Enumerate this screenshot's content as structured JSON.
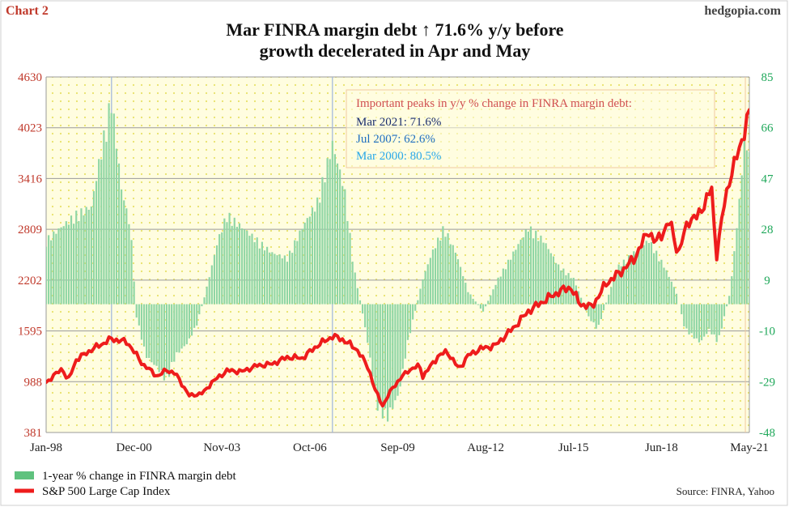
{
  "chart_label": "Chart 2",
  "brand": "hedgopia.com",
  "title_line1": "Mar FINRA margin debt ↑ 71.6% y/y before",
  "title_line2": "growth decelerated in Apr and May",
  "source": "Source: FINRA, Yahoo",
  "colors": {
    "left_axis": "#c0392b",
    "right_axis": "#1fa85a",
    "line": "#ee1c1c",
    "bars": "#8fd6a5",
    "plot_bg": "#fffde0",
    "dot": "#e8e26a",
    "annotation_title": "#d05050",
    "ann_2021": "#1a2e6e",
    "ann_2007": "#1f6fc0",
    "ann_2000": "#28a8e8"
  },
  "annotation": {
    "title": "Important peaks in y/y % change in FINRA margin debt:",
    "items": [
      "Mar 2021: 71.6%",
      "Jul 2007: 62.6%",
      "Mar 2000: 80.5%"
    ]
  },
  "chart_data": {
    "type": "bar+line",
    "title": "Mar FINRA margin debt ↑ 71.6% y/y before growth decelerated in Apr and May",
    "x_tick_labels": [
      "Jan-98",
      "Dec-00",
      "Nov-03",
      "Oct-06",
      "Sep-09",
      "Aug-12",
      "Jul-15",
      "Jun-18",
      "May-21"
    ],
    "x_start": "Jan-98",
    "x_end": "May-21",
    "left_axis": {
      "ticks": [
        381,
        988,
        1595,
        2202,
        2809,
        3416,
        4023,
        4630
      ],
      "range": [
        381,
        4630
      ]
    },
    "right_axis": {
      "ticks": [
        -48,
        -29,
        -10,
        9,
        28,
        47,
        66,
        85
      ],
      "range": [
        -48,
        85
      ]
    },
    "vertical_markers": [
      "Mar 2000",
      "Jul 2007"
    ],
    "legend": [
      "1-year % change in FINRA margin debt",
      "S&P 500 Large Cap Index"
    ],
    "series": [
      {
        "name": "1-year % change in FINRA margin debt",
        "type": "bar",
        "axis": "right",
        "points": [
          [
            1998.0,
            25
          ],
          [
            1998.5,
            30
          ],
          [
            1999.0,
            35
          ],
          [
            1999.5,
            38
          ],
          [
            1999.75,
            55
          ],
          [
            2000.17,
            80.5
          ],
          [
            2000.5,
            45
          ],
          [
            2000.8,
            30
          ],
          [
            2001.0,
            -5
          ],
          [
            2001.3,
            -20
          ],
          [
            2001.7,
            -25
          ],
          [
            2002.0,
            -30
          ],
          [
            2002.3,
            -20
          ],
          [
            2002.7,
            -15
          ],
          [
            2003.0,
            -8
          ],
          [
            2003.3,
            5
          ],
          [
            2003.7,
            25
          ],
          [
            2004.0,
            35
          ],
          [
            2004.5,
            30
          ],
          [
            2005.0,
            25
          ],
          [
            2005.5,
            20
          ],
          [
            2006.0,
            18
          ],
          [
            2006.5,
            30
          ],
          [
            2007.0,
            40
          ],
          [
            2007.5,
            62.6
          ],
          [
            2007.9,
            45
          ],
          [
            2008.2,
            15
          ],
          [
            2008.6,
            -10
          ],
          [
            2009.0,
            -40
          ],
          [
            2009.3,
            -45
          ],
          [
            2009.7,
            -35
          ],
          [
            2010.0,
            -15
          ],
          [
            2010.5,
            10
          ],
          [
            2010.8,
            20
          ],
          [
            2011.2,
            30
          ],
          [
            2011.6,
            20
          ],
          [
            2012.0,
            5
          ],
          [
            2012.5,
            -3
          ],
          [
            2013.0,
            10
          ],
          [
            2013.5,
            20
          ],
          [
            2014.0,
            30
          ],
          [
            2014.5,
            25
          ],
          [
            2015.0,
            15
          ],
          [
            2015.5,
            10
          ],
          [
            2016.0,
            -5
          ],
          [
            2016.3,
            -10
          ],
          [
            2016.7,
            5
          ],
          [
            2017.0,
            15
          ],
          [
            2017.5,
            20
          ],
          [
            2018.0,
            25
          ],
          [
            2018.5,
            15
          ],
          [
            2018.9,
            5
          ],
          [
            2019.2,
            -10
          ],
          [
            2019.7,
            -15
          ],
          [
            2020.0,
            -10
          ],
          [
            2020.3,
            -15
          ],
          [
            2020.7,
            5
          ],
          [
            2021.0,
            40
          ],
          [
            2021.2,
            71.6
          ],
          [
            2021.35,
            55
          ],
          [
            2021.45,
            45
          ]
        ]
      },
      {
        "name": "S&P 500 Large Cap Index",
        "type": "line",
        "axis": "left",
        "points": [
          [
            1998.0,
            980
          ],
          [
            1998.55,
            1150
          ],
          [
            1998.72,
            990
          ],
          [
            1999.0,
            1250
          ],
          [
            1999.5,
            1370
          ],
          [
            2000.17,
            1500
          ],
          [
            2000.7,
            1460
          ],
          [
            2001.2,
            1200
          ],
          [
            2001.7,
            1050
          ],
          [
            2002.0,
            1130
          ],
          [
            2002.3,
            1080
          ],
          [
            2002.75,
            820
          ],
          [
            2003.2,
            850
          ],
          [
            2003.5,
            980
          ],
          [
            2004.0,
            1120
          ],
          [
            2004.5,
            1110
          ],
          [
            2005.0,
            1180
          ],
          [
            2005.5,
            1200
          ],
          [
            2006.0,
            1280
          ],
          [
            2006.5,
            1270
          ],
          [
            2007.0,
            1420
          ],
          [
            2007.5,
            1530
          ],
          [
            2007.8,
            1500
          ],
          [
            2008.3,
            1380
          ],
          [
            2008.7,
            1150
          ],
          [
            2008.9,
            900
          ],
          [
            2009.17,
            700
          ],
          [
            2009.5,
            920
          ],
          [
            2010.0,
            1120
          ],
          [
            2010.4,
            1180
          ],
          [
            2010.5,
            1050
          ],
          [
            2011.0,
            1290
          ],
          [
            2011.3,
            1350
          ],
          [
            2011.7,
            1140
          ],
          [
            2012.0,
            1300
          ],
          [
            2012.4,
            1380
          ],
          [
            2012.9,
            1420
          ],
          [
            2013.5,
            1630
          ],
          [
            2014.0,
            1830
          ],
          [
            2014.5,
            1950
          ],
          [
            2015.0,
            2060
          ],
          [
            2015.4,
            2120
          ],
          [
            2015.7,
            1920
          ],
          [
            2016.1,
            1880
          ],
          [
            2016.6,
            2170
          ],
          [
            2017.0,
            2280
          ],
          [
            2017.5,
            2450
          ],
          [
            2018.0,
            2800
          ],
          [
            2018.2,
            2640
          ],
          [
            2018.7,
            2900
          ],
          [
            2018.98,
            2510
          ],
          [
            2019.3,
            2920
          ],
          [
            2019.6,
            2950
          ],
          [
            2020.1,
            3300
          ],
          [
            2020.22,
            2450
          ],
          [
            2020.5,
            3100
          ],
          [
            2020.7,
            3450
          ],
          [
            2020.95,
            3700
          ],
          [
            2021.1,
            3900
          ],
          [
            2021.3,
            4180
          ],
          [
            2021.42,
            4200
          ]
        ]
      }
    ]
  }
}
